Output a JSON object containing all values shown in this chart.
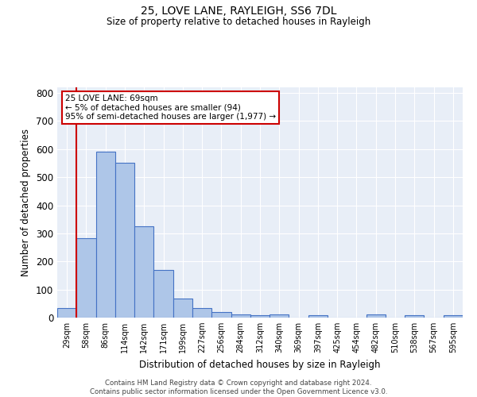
{
  "title1": "25, LOVE LANE, RAYLEIGH, SS6 7DL",
  "title2": "Size of property relative to detached houses in Rayleigh",
  "xlabel": "Distribution of detached houses by size in Rayleigh",
  "ylabel": "Number of detached properties",
  "bar_labels": [
    "29sqm",
    "58sqm",
    "86sqm",
    "114sqm",
    "142sqm",
    "171sqm",
    "199sqm",
    "227sqm",
    "256sqm",
    "284sqm",
    "312sqm",
    "340sqm",
    "369sqm",
    "397sqm",
    "425sqm",
    "454sqm",
    "482sqm",
    "510sqm",
    "538sqm",
    "567sqm",
    "595sqm"
  ],
  "bar_values": [
    35,
    282,
    592,
    550,
    325,
    170,
    67,
    35,
    20,
    12,
    8,
    10,
    0,
    8,
    0,
    0,
    10,
    0,
    8,
    0,
    8
  ],
  "bar_color": "#aec6e8",
  "bar_edge_color": "#4472c4",
  "bg_color": "#e8eef7",
  "annotation_text": "25 LOVE LANE: 69sqm\n← 5% of detached houses are smaller (94)\n95% of semi-detached houses are larger (1,977) →",
  "annotation_box_color": "#ffffff",
  "annotation_box_edge": "#cc0000",
  "vline_x": 0.5,
  "vline_color": "#cc0000",
  "ylim": [
    0,
    820
  ],
  "yticks": [
    0,
    100,
    200,
    300,
    400,
    500,
    600,
    700,
    800
  ],
  "footer1": "Contains HM Land Registry data © Crown copyright and database right 2024.",
  "footer2": "Contains public sector information licensed under the Open Government Licence v3.0."
}
